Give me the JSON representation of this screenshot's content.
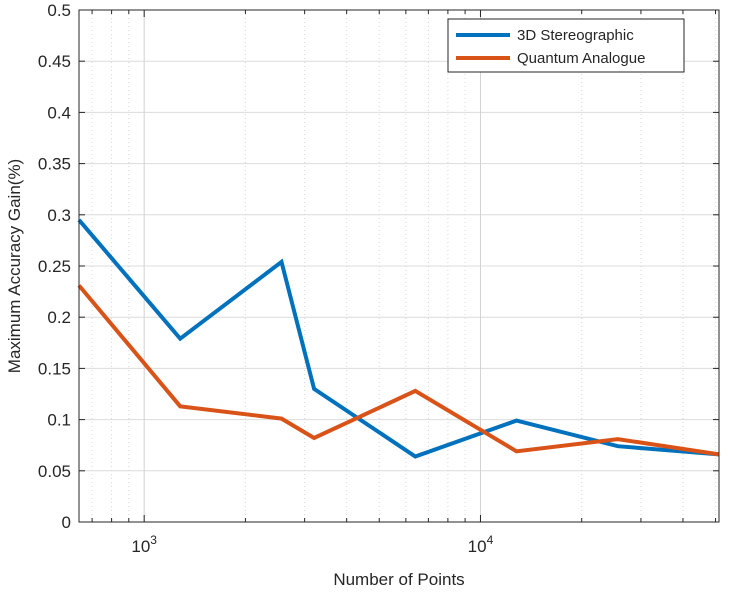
{
  "chart_data": {
    "type": "line",
    "xlabel": "Number of Points",
    "ylabel": "Maximum Accuracy Gain(%)",
    "xscale": "log",
    "xlim": [
      640,
      51200
    ],
    "ylim": [
      0,
      0.5
    ],
    "grid": true,
    "legend_position": "top-right",
    "x_tick_labels": [
      {
        "value": 1000,
        "base": "10",
        "exp": "3"
      },
      {
        "value": 10000,
        "base": "10",
        "exp": "4"
      }
    ],
    "y_ticks": [
      0,
      0.05,
      0.1,
      0.15,
      0.2,
      0.25,
      0.3,
      0.35,
      0.4,
      0.45,
      0.5
    ],
    "y_tick_labels": [
      "0",
      "0.05",
      "0.1",
      "0.15",
      "0.2",
      "0.25",
      "0.3",
      "0.35",
      "0.4",
      "0.45",
      "0.5"
    ],
    "x": [
      640,
      1280,
      2560,
      3200,
      6400,
      12800,
      25600,
      51200
    ],
    "series": [
      {
        "name": "3D Stereographic",
        "color": "#0072BD",
        "values": [
          0.295,
          0.179,
          0.254,
          0.13,
          0.064,
          0.099,
          0.074,
          0.066
        ]
      },
      {
        "name": "Quantum Analogue",
        "color": "#D95319",
        "values": [
          0.231,
          0.113,
          0.101,
          0.082,
          0.128,
          0.069,
          0.081,
          0.066
        ]
      }
    ]
  }
}
